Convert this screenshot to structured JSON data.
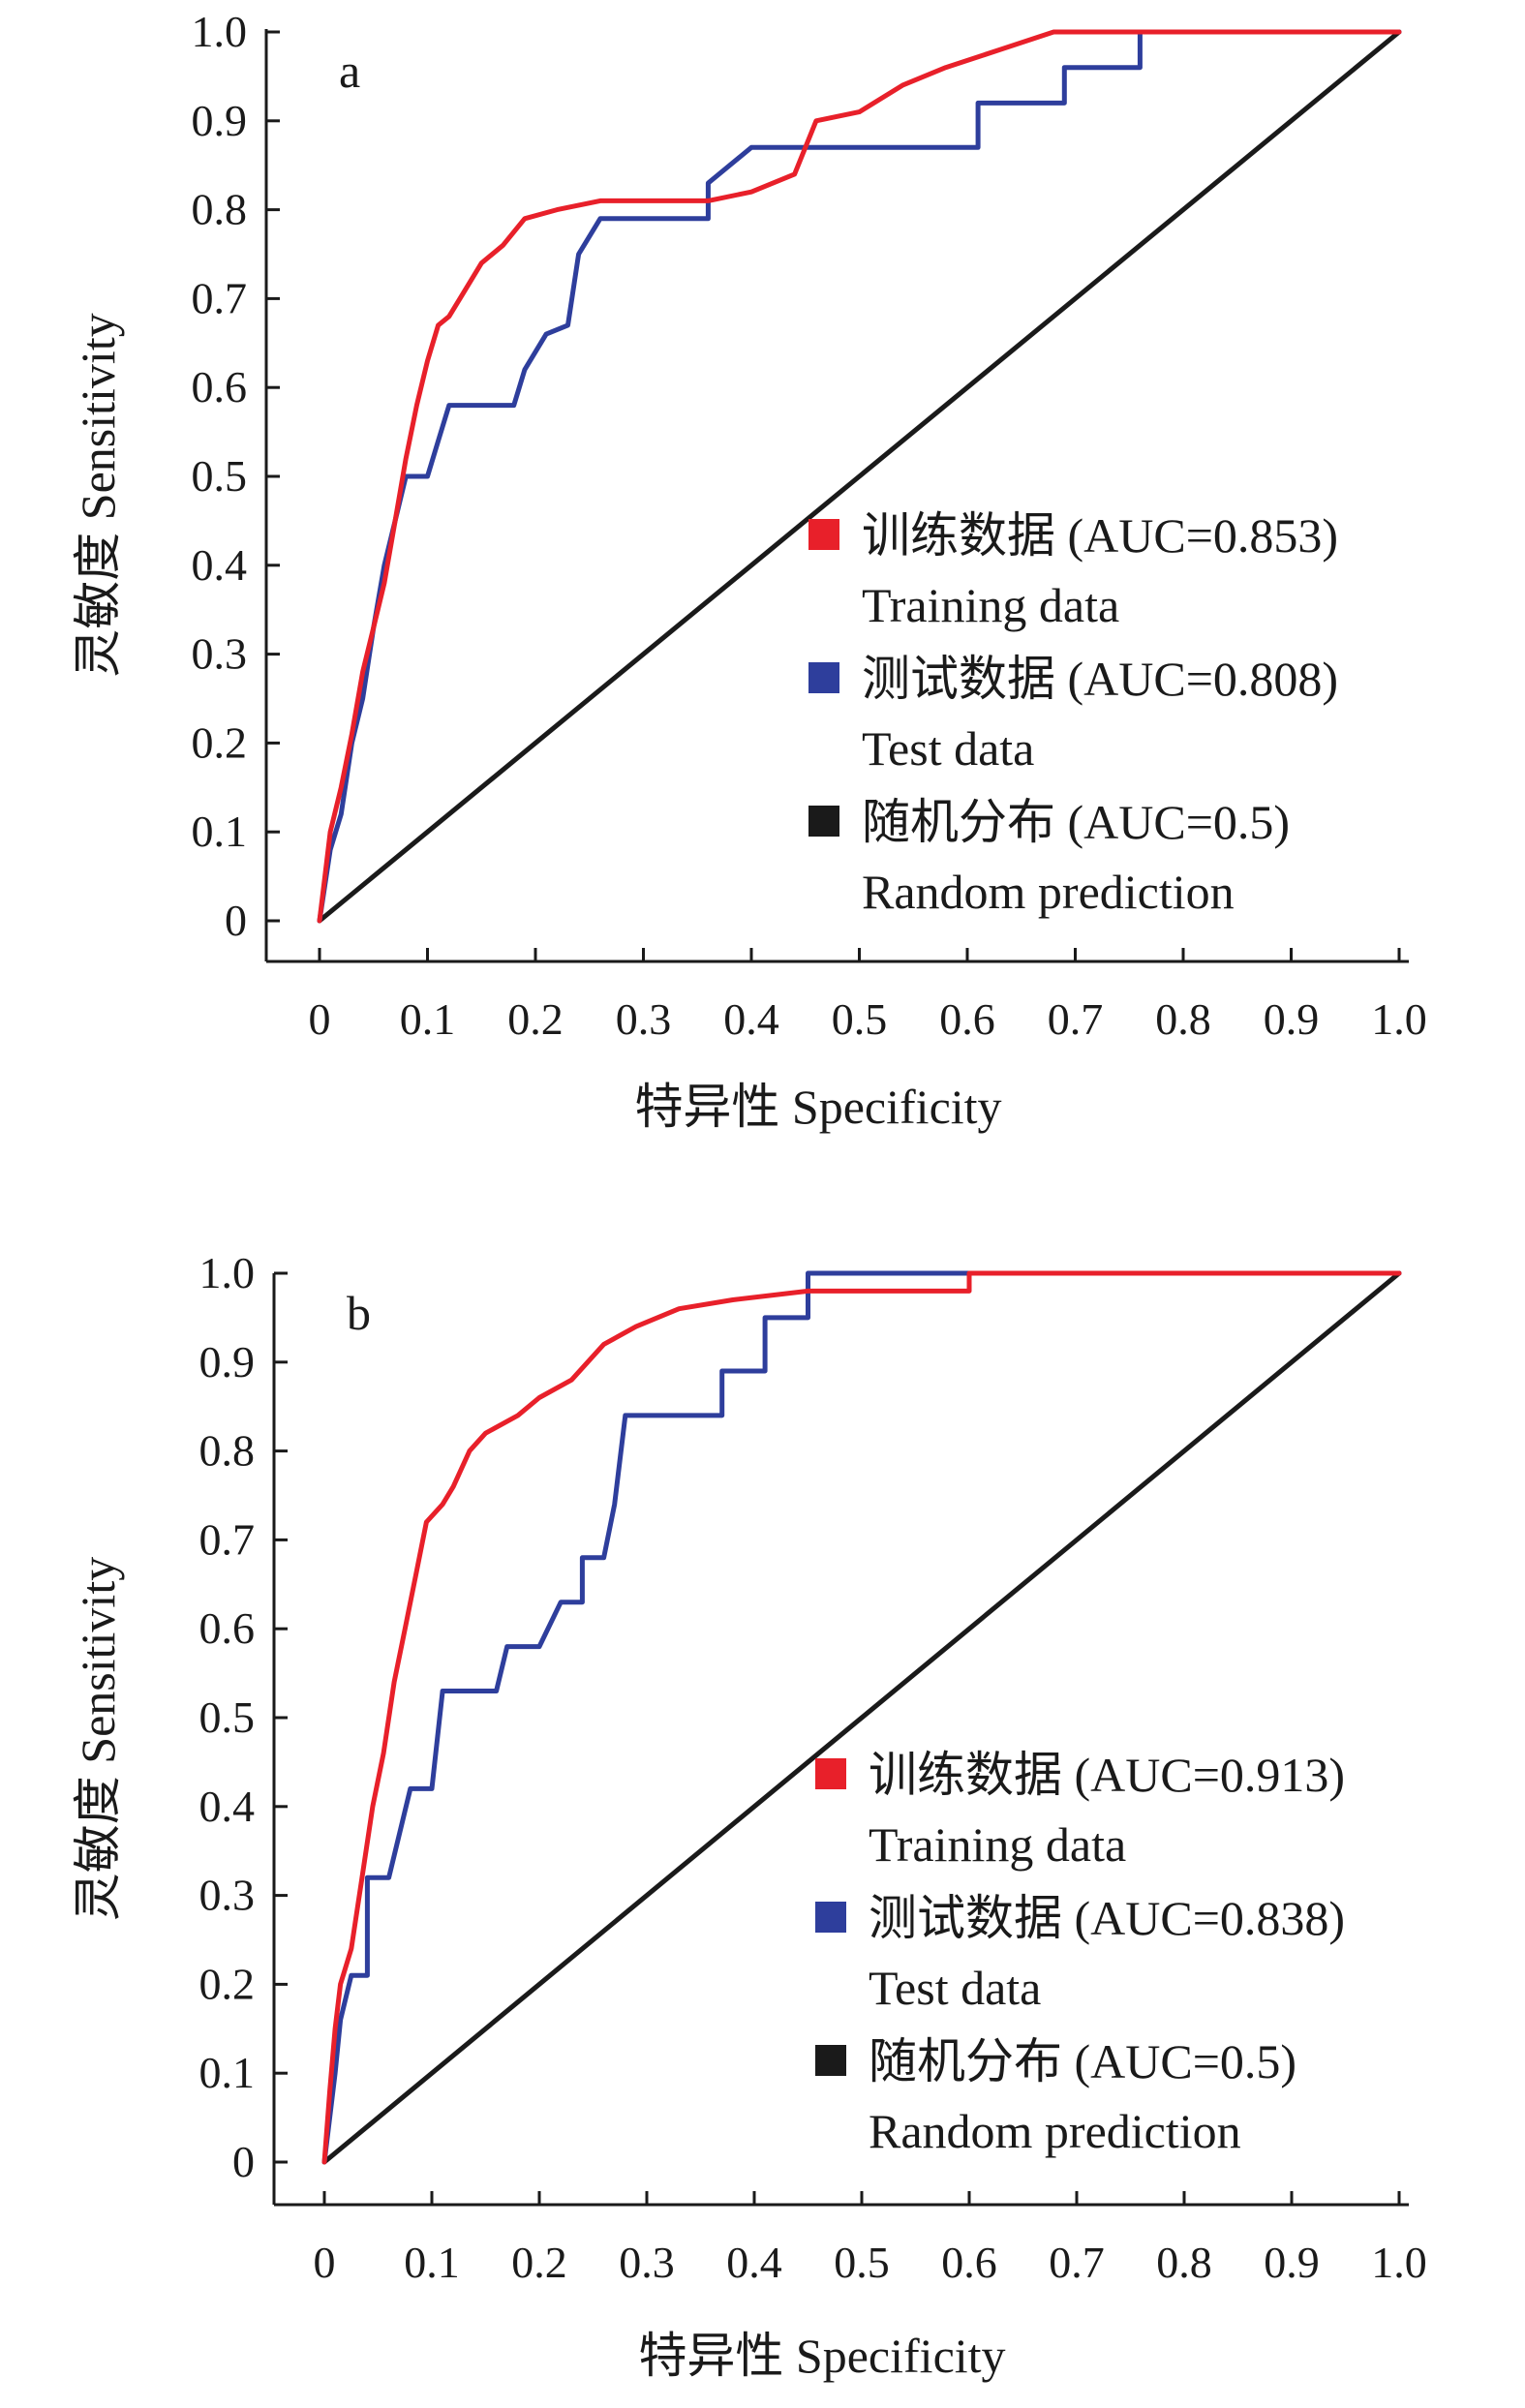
{
  "colors": {
    "training": "#e8202a",
    "test": "#2e3e9c",
    "random": "#1a1a1a",
    "axis": "#1a1a1a"
  },
  "chart_data": [
    {
      "type": "line",
      "panel_label": "a",
      "xlabel": "特异性 Specificity",
      "ylabel": "灵敏度 Sensitivity",
      "xlim": [
        0,
        1.0
      ],
      "ylim": [
        0,
        1.0
      ],
      "x_ticks": [
        "0",
        "0.1",
        "0.2",
        "0.3",
        "0.4",
        "0.5",
        "0.6",
        "0.7",
        "0.8",
        "0.9",
        "1.0"
      ],
      "y_ticks": [
        "0",
        "0.1",
        "0.2",
        "0.3",
        "0.4",
        "0.5",
        "0.6",
        "0.7",
        "0.8",
        "0.9",
        "1.0"
      ],
      "grid": false,
      "legend_position": "lower-right",
      "series": [
        {
          "name": "训练数据 (AUC=0.853)",
          "name_en": "Training data",
          "color_key": "training",
          "points": [
            [
              0,
              0
            ],
            [
              0.005,
              0.05
            ],
            [
              0.01,
              0.1
            ],
            [
              0.02,
              0.15
            ],
            [
              0.03,
              0.21
            ],
            [
              0.04,
              0.28
            ],
            [
              0.05,
              0.33
            ],
            [
              0.06,
              0.38
            ],
            [
              0.07,
              0.45
            ],
            [
              0.08,
              0.52
            ],
            [
              0.09,
              0.58
            ],
            [
              0.1,
              0.63
            ],
            [
              0.11,
              0.67
            ],
            [
              0.12,
              0.68
            ],
            [
              0.13,
              0.7
            ],
            [
              0.15,
              0.74
            ],
            [
              0.17,
              0.76
            ],
            [
              0.19,
              0.79
            ],
            [
              0.22,
              0.8
            ],
            [
              0.26,
              0.81
            ],
            [
              0.3,
              0.81
            ],
            [
              0.36,
              0.81
            ],
            [
              0.4,
              0.82
            ],
            [
              0.44,
              0.84
            ],
            [
              0.46,
              0.9
            ],
            [
              0.5,
              0.91
            ],
            [
              0.54,
              0.94
            ],
            [
              0.58,
              0.96
            ],
            [
              0.63,
              0.98
            ],
            [
              0.68,
              1.0
            ],
            [
              1.0,
              1.0
            ]
          ]
        },
        {
          "name": "测试数据 (AUC=0.808)",
          "name_en": "Test data",
          "color_key": "test",
          "points": [
            [
              0,
              0
            ],
            [
              0.01,
              0.08
            ],
            [
              0.02,
              0.12
            ],
            [
              0.03,
              0.2
            ],
            [
              0.04,
              0.25
            ],
            [
              0.05,
              0.33
            ],
            [
              0.06,
              0.4
            ],
            [
              0.07,
              0.45
            ],
            [
              0.08,
              0.5
            ],
            [
              0.1,
              0.5
            ],
            [
              0.11,
              0.54
            ],
            [
              0.12,
              0.58
            ],
            [
              0.18,
              0.58
            ],
            [
              0.19,
              0.62
            ],
            [
              0.21,
              0.66
            ],
            [
              0.23,
              0.67
            ],
            [
              0.24,
              0.75
            ],
            [
              0.26,
              0.79
            ],
            [
              0.36,
              0.79
            ],
            [
              0.36,
              0.83
            ],
            [
              0.4,
              0.87
            ],
            [
              0.53,
              0.87
            ],
            [
              0.61,
              0.87
            ],
            [
              0.61,
              0.92
            ],
            [
              0.69,
              0.92
            ],
            [
              0.69,
              0.96
            ],
            [
              0.76,
              0.96
            ],
            [
              0.76,
              1.0
            ],
            [
              1.0,
              1.0
            ]
          ]
        },
        {
          "name": "随机分布 (AUC=0.5)",
          "name_en": "Random prediction",
          "color_key": "random",
          "points": [
            [
              0,
              0
            ],
            [
              1.0,
              1.0
            ]
          ]
        }
      ]
    },
    {
      "type": "line",
      "panel_label": "b",
      "xlabel": "特异性 Specificity",
      "ylabel": "灵敏度 Sensitivity",
      "xlim": [
        0,
        1.0
      ],
      "ylim": [
        0,
        1.0
      ],
      "x_ticks": [
        "0",
        "0.1",
        "0.2",
        "0.3",
        "0.4",
        "0.5",
        "0.6",
        "0.7",
        "0.8",
        "0.9",
        "1.0"
      ],
      "y_ticks": [
        "0",
        "0.1",
        "0.2",
        "0.3",
        "0.4",
        "0.5",
        "0.6",
        "0.7",
        "0.8",
        "0.9",
        "1.0"
      ],
      "grid": false,
      "legend_position": "lower-right",
      "series": [
        {
          "name": "训练数据 (AUC=0.913)",
          "name_en": "Training data",
          "color_key": "training",
          "points": [
            [
              0,
              0
            ],
            [
              0.005,
              0.08
            ],
            [
              0.01,
              0.15
            ],
            [
              0.015,
              0.2
            ],
            [
              0.025,
              0.24
            ],
            [
              0.035,
              0.32
            ],
            [
              0.045,
              0.4
            ],
            [
              0.055,
              0.46
            ],
            [
              0.065,
              0.54
            ],
            [
              0.075,
              0.6
            ],
            [
              0.085,
              0.66
            ],
            [
              0.095,
              0.72
            ],
            [
              0.11,
              0.74
            ],
            [
              0.12,
              0.76
            ],
            [
              0.135,
              0.8
            ],
            [
              0.15,
              0.82
            ],
            [
              0.18,
              0.84
            ],
            [
              0.2,
              0.86
            ],
            [
              0.23,
              0.88
            ],
            [
              0.26,
              0.92
            ],
            [
              0.29,
              0.94
            ],
            [
              0.33,
              0.96
            ],
            [
              0.38,
              0.97
            ],
            [
              0.45,
              0.98
            ],
            [
              0.6,
              0.98
            ],
            [
              0.6,
              1.0
            ],
            [
              1.0,
              1.0
            ]
          ]
        },
        {
          "name": "测试数据 (AUC=0.838)",
          "name_en": "Test data",
          "color_key": "test",
          "points": [
            [
              0,
              0
            ],
            [
              0.01,
              0.1
            ],
            [
              0.015,
              0.16
            ],
            [
              0.025,
              0.21
            ],
            [
              0.04,
              0.21
            ],
            [
              0.04,
              0.32
            ],
            [
              0.06,
              0.32
            ],
            [
              0.07,
              0.37
            ],
            [
              0.08,
              0.42
            ],
            [
              0.1,
              0.42
            ],
            [
              0.11,
              0.53
            ],
            [
              0.16,
              0.53
            ],
            [
              0.17,
              0.58
            ],
            [
              0.2,
              0.58
            ],
            [
              0.22,
              0.63
            ],
            [
              0.24,
              0.63
            ],
            [
              0.24,
              0.68
            ],
            [
              0.26,
              0.68
            ],
            [
              0.27,
              0.74
            ],
            [
              0.28,
              0.84
            ],
            [
              0.37,
              0.84
            ],
            [
              0.37,
              0.89
            ],
            [
              0.41,
              0.89
            ],
            [
              0.41,
              0.95
            ],
            [
              0.45,
              0.95
            ],
            [
              0.45,
              1.0
            ],
            [
              1.0,
              1.0
            ]
          ]
        },
        {
          "name": "随机分布 (AUC=0.5)",
          "name_en": "Random prediction",
          "color_key": "random",
          "points": [
            [
              0,
              0
            ],
            [
              1.0,
              1.0
            ]
          ]
        }
      ]
    }
  ]
}
